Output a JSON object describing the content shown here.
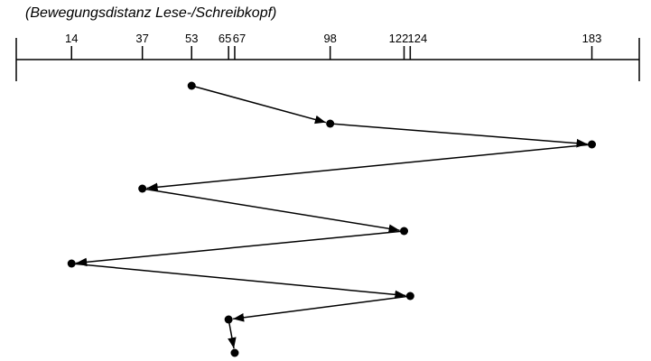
{
  "title": "(Bewegungsdistanz Lese-/Schreibkopf)",
  "axis_ticks": [
    14,
    37,
    53,
    65,
    67,
    98,
    122,
    124,
    183
  ],
  "sequence": [
    53,
    98,
    183,
    37,
    122,
    14,
    124,
    65,
    67
  ],
  "colors": {
    "line": "#000000",
    "point": "#000000"
  }
}
